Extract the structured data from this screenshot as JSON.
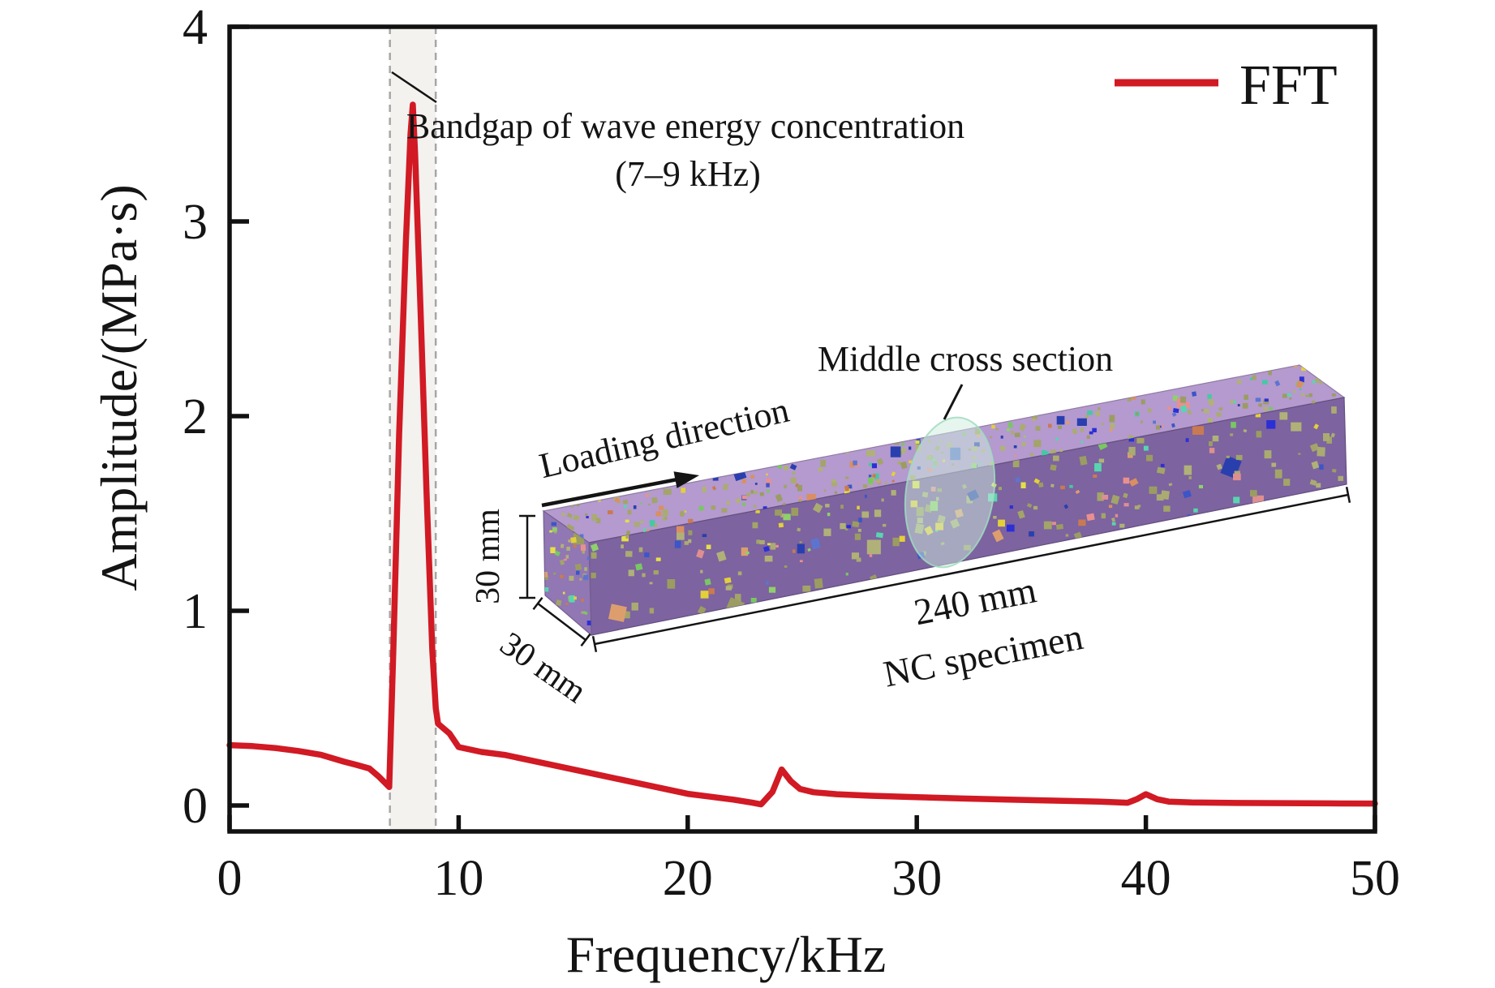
{
  "axes": {
    "xlabel": "Frequency/kHz",
    "ylabel": "Amplitude/(MPa·s)"
  },
  "legend": {
    "label": "FFT"
  },
  "annotation": {
    "line1": "Bandgap of wave energy concentration",
    "line2": "(7–9 kHz)"
  },
  "inset": {
    "middle_cross_section_label": "Middle cross section",
    "loading_direction_label": "Loading direction",
    "height_label": "30 mm",
    "depth_label": "30 mm",
    "length_label": "240 mm",
    "specimen_label": "NC specimen",
    "colors": {
      "top_face": "#b49ace",
      "front_face": "#7d639f",
      "left_face": "#9177b3",
      "cross_section_fill": "#cdeedd",
      "cross_section_stroke": "#9fdcc0"
    }
  },
  "chart_data": {
    "type": "line",
    "title": "",
    "xlabel": "Frequency/kHz",
    "ylabel": "Amplitude/(MPa·s)",
    "xlim": [
      0,
      50
    ],
    "ylim": [
      -0.13,
      4.0
    ],
    "x_ticks": [
      "0",
      "10",
      "20",
      "30",
      "40",
      "50"
    ],
    "y_ticks": [
      "0",
      "1",
      "2",
      "3",
      "4"
    ],
    "grid": false,
    "legend": {
      "position": "top-right",
      "entries": [
        {
          "label": "FFT",
          "color": "#d11a24"
        }
      ]
    },
    "highlight_band": {
      "x_start_khz": 7,
      "x_end_khz": 9,
      "fill": "#f3f2ef",
      "border": "#a6a6a6",
      "label": "Bandgap of wave energy concentration",
      "sub_label": "(7–9 kHz)"
    },
    "peak": {
      "frequency_khz": 8.0,
      "amplitude": 3.6
    },
    "series": [
      {
        "name": "FFT",
        "color": "#d11a24",
        "points": [
          [
            0,
            0.31
          ],
          [
            1,
            0.305
          ],
          [
            2,
            0.295
          ],
          [
            3,
            0.28
          ],
          [
            4,
            0.26
          ],
          [
            5,
            0.225
          ],
          [
            5.5,
            0.21
          ],
          [
            6.1,
            0.19
          ],
          [
            6.5,
            0.15
          ],
          [
            6.8,
            0.115
          ],
          [
            6.97,
            0.095
          ],
          [
            7.15,
            0.8
          ],
          [
            7.4,
            1.9
          ],
          [
            7.7,
            2.9
          ],
          [
            7.9,
            3.45
          ],
          [
            8.0,
            3.6
          ],
          [
            8.1,
            3.35
          ],
          [
            8.35,
            2.5
          ],
          [
            8.6,
            1.6
          ],
          [
            8.85,
            0.8
          ],
          [
            9.0,
            0.5
          ],
          [
            9.1,
            0.42
          ],
          [
            9.6,
            0.37
          ],
          [
            10,
            0.3
          ],
          [
            11,
            0.275
          ],
          [
            12,
            0.26
          ],
          [
            13,
            0.235
          ],
          [
            14,
            0.21
          ],
          [
            15,
            0.185
          ],
          [
            16,
            0.16
          ],
          [
            17,
            0.135
          ],
          [
            18,
            0.11
          ],
          [
            19,
            0.085
          ],
          [
            20,
            0.06
          ],
          [
            21,
            0.045
          ],
          [
            22,
            0.03
          ],
          [
            22.8,
            0.015
          ],
          [
            23.2,
            0.006
          ],
          [
            23.7,
            0.07
          ],
          [
            24.1,
            0.185
          ],
          [
            24.5,
            0.125
          ],
          [
            24.9,
            0.085
          ],
          [
            25.5,
            0.068
          ],
          [
            26.5,
            0.058
          ],
          [
            28,
            0.05
          ],
          [
            30,
            0.043
          ],
          [
            32,
            0.036
          ],
          [
            34,
            0.03
          ],
          [
            36,
            0.025
          ],
          [
            38,
            0.02
          ],
          [
            39.2,
            0.014
          ],
          [
            39.6,
            0.032
          ],
          [
            40,
            0.058
          ],
          [
            40.5,
            0.032
          ],
          [
            41,
            0.02
          ],
          [
            42,
            0.016
          ],
          [
            44,
            0.013
          ],
          [
            46,
            0.012
          ],
          [
            48,
            0.011
          ],
          [
            50,
            0.01
          ]
        ]
      }
    ]
  }
}
